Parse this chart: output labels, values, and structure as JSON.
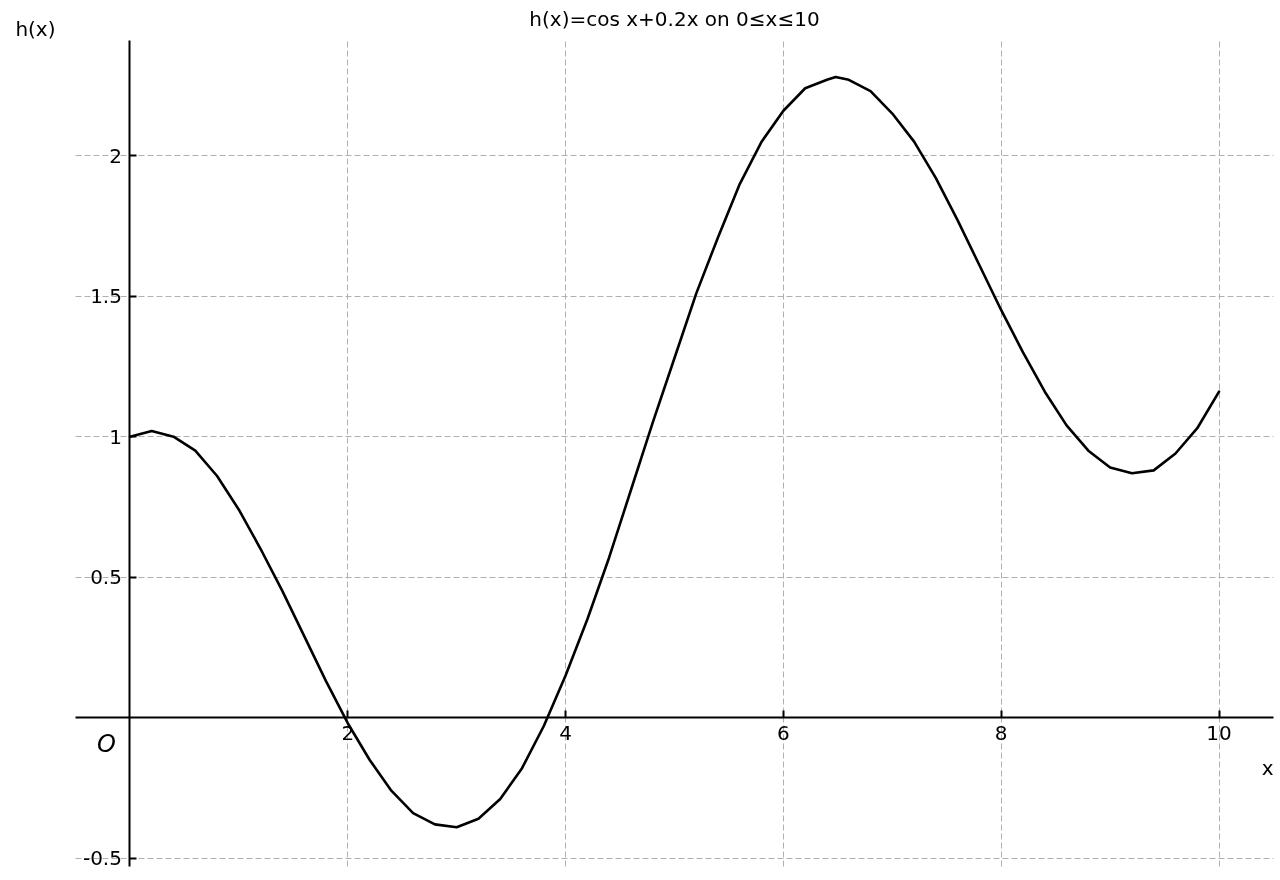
{
  "chart_data": {
    "type": "line",
    "title": "h(x)=cos x+0.2x on 0≤x≤10",
    "xlabel": "x",
    "ylabel": "h(x)",
    "annotations": [
      "O"
    ],
    "x": [
      0,
      0.2,
      0.4,
      0.6,
      0.8,
      1,
      1.2,
      1.4,
      1.6,
      1.8,
      2,
      2.2,
      2.4,
      2.6,
      2.8,
      3,
      3.2,
      3.4,
      3.6,
      3.8,
      4,
      4.2,
      4.4,
      4.6,
      4.8,
      5,
      5.2,
      5.4,
      5.6,
      5.8,
      6,
      6.2,
      6.4,
      6.48,
      6.6,
      6.8,
      7,
      7.2,
      7.4,
      7.6,
      7.8,
      8,
      8.2,
      8.4,
      8.6,
      8.8,
      9,
      9.2,
      9.4,
      9.6,
      9.8,
      10
    ],
    "series": [
      {
        "color": "#000000",
        "values": [
          1.0,
          1.02,
          1.0,
          0.95,
          0.86,
          0.74,
          0.6,
          0.45,
          0.29,
          0.13,
          -0.02,
          -0.15,
          -0.26,
          -0.34,
          -0.38,
          -0.39,
          -0.36,
          -0.29,
          -0.18,
          -0.03,
          0.15,
          0.35,
          0.57,
          0.81,
          1.05,
          1.28,
          1.51,
          1.71,
          1.9,
          2.05,
          2.16,
          2.24,
          2.27,
          2.28,
          2.27,
          2.23,
          2.15,
          2.05,
          1.92,
          1.77,
          1.61,
          1.45,
          1.3,
          1.16,
          1.04,
          0.95,
          0.89,
          0.87,
          0.88,
          0.94,
          1.03,
          1.16
        ]
      }
    ],
    "xlim": [
      -0.5,
      10.5
    ],
    "ylim": [
      -0.53,
      2.41
    ],
    "xticks": [
      2,
      4,
      6,
      8,
      10
    ],
    "yticks": [
      -0.5,
      0.5,
      1,
      1.5,
      2
    ],
    "grid": true,
    "line_style": "solid"
  }
}
